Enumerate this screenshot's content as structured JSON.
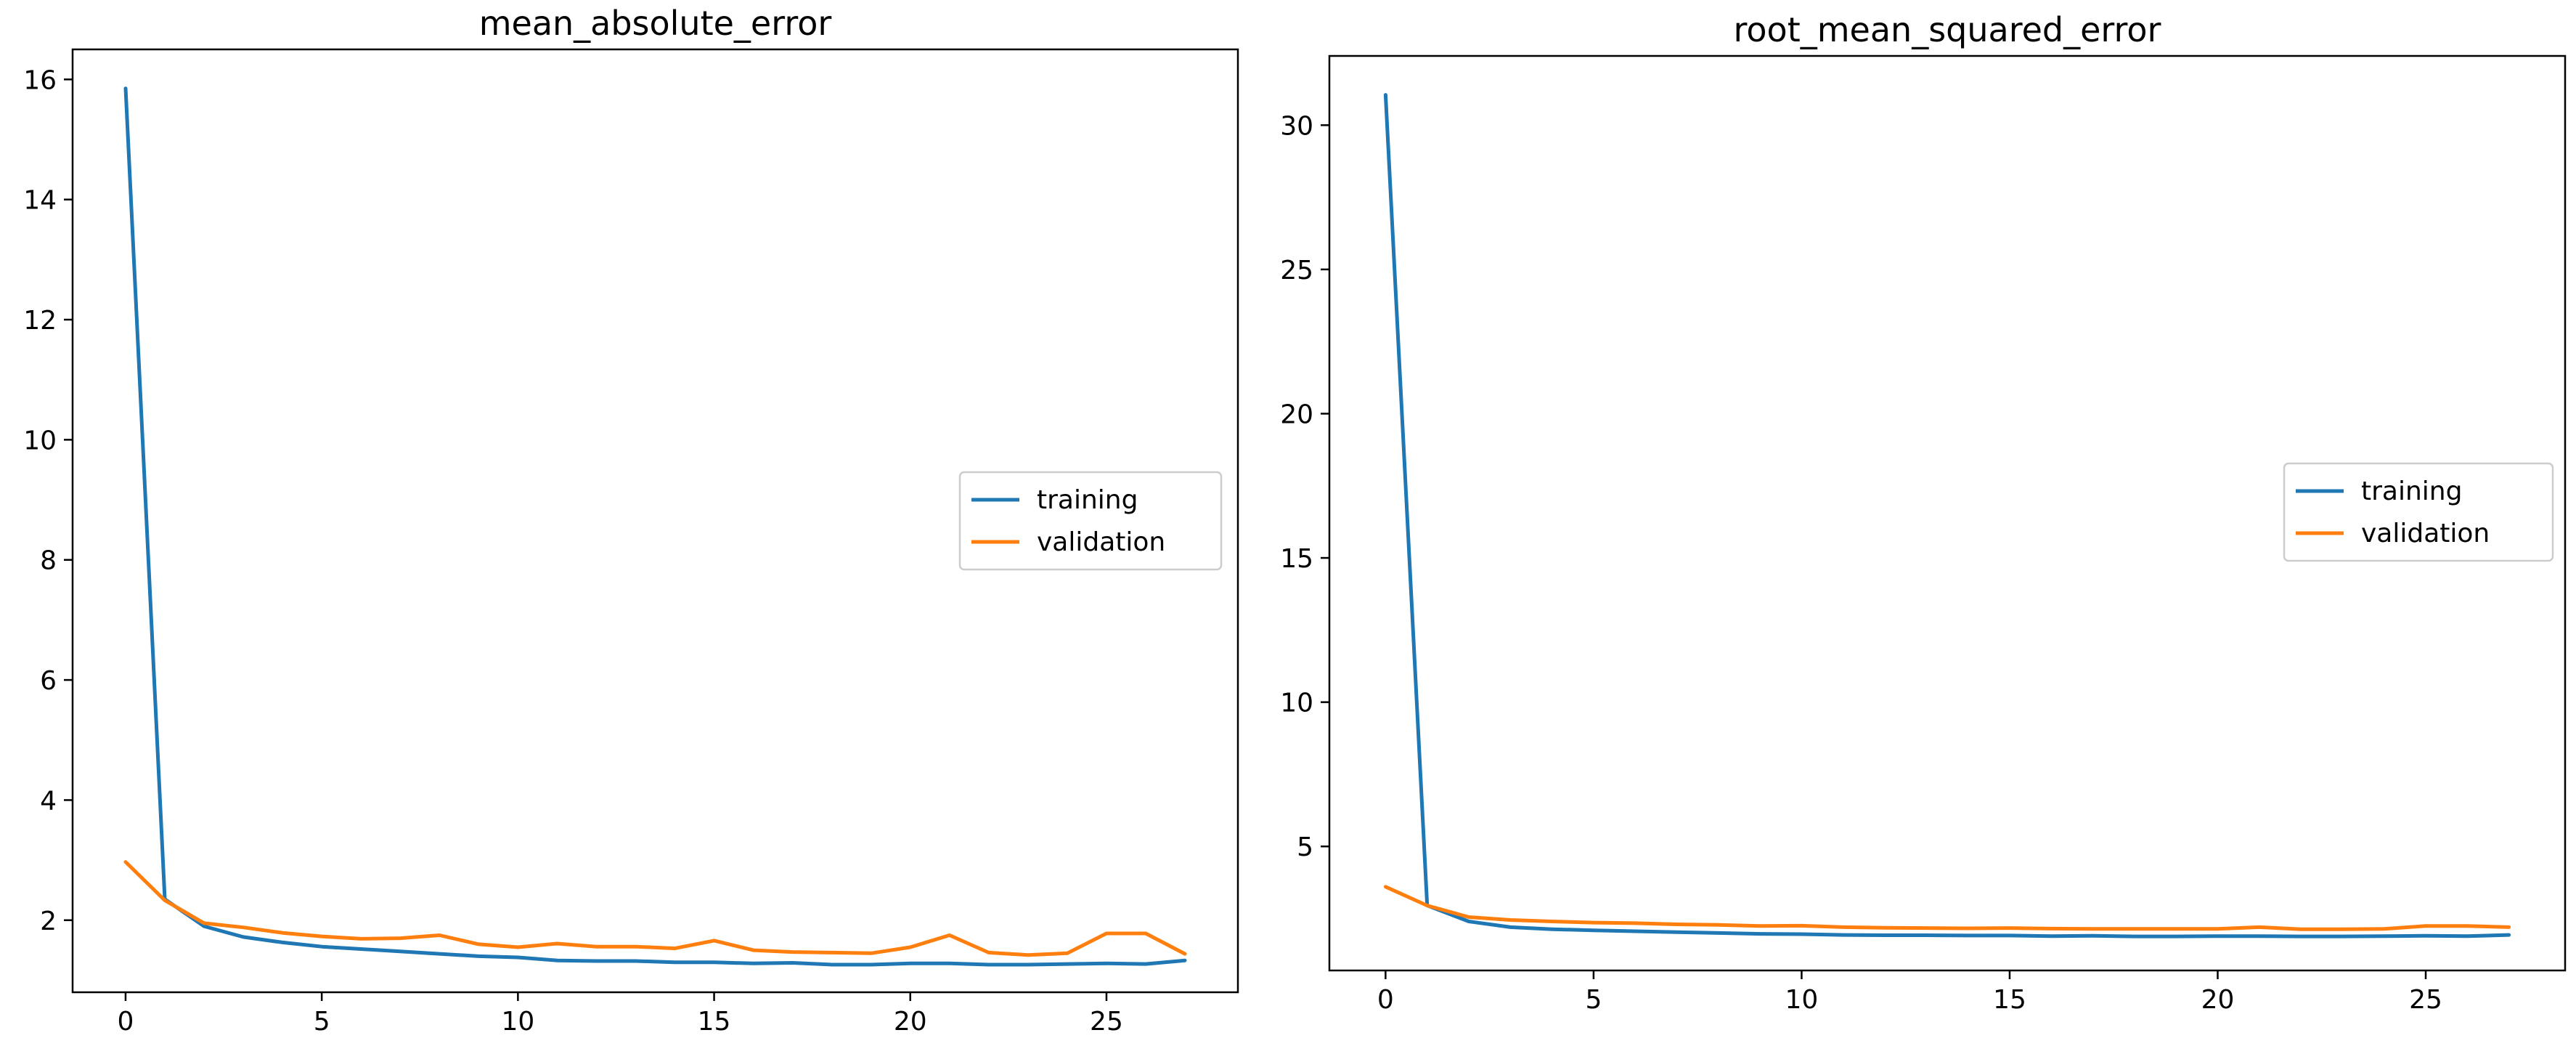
{
  "chart_data": [
    {
      "type": "line",
      "title": "mean_absolute_error",
      "xlabel": "",
      "ylabel": "",
      "xlim": [
        -1.35,
        28.35
      ],
      "ylim": [
        0.8,
        16.5
      ],
      "xticks": [
        0,
        5,
        10,
        15,
        20,
        25
      ],
      "yticks": [
        2,
        4,
        6,
        8,
        10,
        12,
        14,
        16
      ],
      "grid": false,
      "legend_position": "center-right",
      "x": [
        0,
        1,
        2,
        3,
        4,
        5,
        6,
        7,
        8,
        9,
        10,
        11,
        12,
        13,
        14,
        15,
        16,
        17,
        18,
        19,
        20,
        21,
        22,
        23,
        24,
        25,
        26,
        27
      ],
      "series": [
        {
          "name": "training",
          "color": "#1f77b4",
          "values": [
            15.85,
            2.35,
            1.9,
            1.72,
            1.63,
            1.56,
            1.52,
            1.48,
            1.44,
            1.4,
            1.38,
            1.33,
            1.32,
            1.32,
            1.3,
            1.3,
            1.28,
            1.29,
            1.26,
            1.26,
            1.28,
            1.28,
            1.26,
            1.26,
            1.27,
            1.28,
            1.27,
            1.33
          ]
        },
        {
          "name": "validation",
          "color": "#ff7f0e",
          "values": [
            2.97,
            2.33,
            1.95,
            1.88,
            1.79,
            1.73,
            1.69,
            1.7,
            1.75,
            1.6,
            1.55,
            1.61,
            1.56,
            1.56,
            1.53,
            1.66,
            1.5,
            1.47,
            1.46,
            1.45,
            1.55,
            1.75,
            1.46,
            1.42,
            1.45,
            1.78,
            1.78,
            1.44
          ]
        }
      ]
    },
    {
      "type": "line",
      "title": "root_mean_squared_error",
      "xlabel": "",
      "ylabel": "",
      "xlim": [
        -1.35,
        28.35
      ],
      "ylim": [
        0.7,
        32.4
      ],
      "xticks": [
        0,
        5,
        10,
        15,
        20,
        25
      ],
      "yticks": [
        5,
        10,
        15,
        20,
        25,
        30
      ],
      "grid": false,
      "legend_position": "center-right",
      "x": [
        0,
        1,
        2,
        3,
        4,
        5,
        6,
        7,
        8,
        9,
        10,
        11,
        12,
        13,
        14,
        15,
        16,
        17,
        18,
        19,
        20,
        21,
        22,
        23,
        24,
        25,
        26,
        27
      ],
      "series": [
        {
          "name": "training",
          "color": "#1f77b4",
          "values": [
            31.05,
            2.95,
            2.4,
            2.2,
            2.13,
            2.09,
            2.06,
            2.03,
            2.0,
            1.97,
            1.96,
            1.93,
            1.92,
            1.92,
            1.91,
            1.91,
            1.89,
            1.9,
            1.88,
            1.88,
            1.89,
            1.89,
            1.88,
            1.88,
            1.89,
            1.9,
            1.89,
            1.93
          ]
        },
        {
          "name": "validation",
          "color": "#ff7f0e",
          "values": [
            3.6,
            2.95,
            2.55,
            2.45,
            2.4,
            2.36,
            2.34,
            2.3,
            2.28,
            2.24,
            2.25,
            2.2,
            2.18,
            2.17,
            2.16,
            2.17,
            2.15,
            2.14,
            2.14,
            2.14,
            2.14,
            2.2,
            2.13,
            2.13,
            2.14,
            2.24,
            2.24,
            2.2
          ]
        }
      ]
    }
  ]
}
